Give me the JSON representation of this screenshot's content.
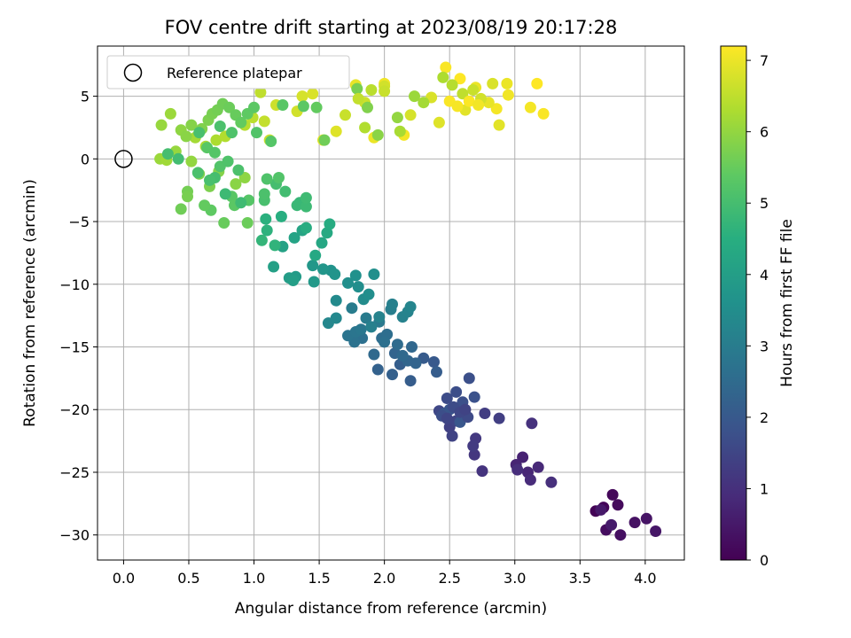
{
  "chart_data": {
    "type": "scatter",
    "title": "FOV centre drift starting at 2023/08/19 20:17:28",
    "xlabel": "Angular distance from reference (arcmin)",
    "ylabel": "Rotation from reference (arcmin)",
    "xlim": [
      -0.2,
      4.3
    ],
    "ylim": [
      -32,
      9
    ],
    "xticks": [
      "0.0",
      "0.5",
      "1.0",
      "1.5",
      "2.0",
      "2.5",
      "3.0",
      "3.5",
      "4.0"
    ],
    "xtick_values": [
      0,
      0.5,
      1,
      1.5,
      2,
      2.5,
      3,
      3.5,
      4
    ],
    "yticks": [
      "5",
      "0",
      "−5",
      "−10",
      "−15",
      "−20",
      "−25",
      "−30"
    ],
    "ytick_values": [
      5,
      0,
      -5,
      -10,
      -15,
      -20,
      -25,
      -30
    ],
    "grid": true,
    "colormap": "viridis",
    "colorbar": {
      "label": "Hours from first FF file",
      "range": [
        0,
        7.2
      ],
      "ticks": [
        "0",
        "1",
        "2",
        "3",
        "4",
        "5",
        "6",
        "7"
      ],
      "tick_values": [
        0,
        1,
        2,
        3,
        4,
        5,
        6,
        7
      ]
    },
    "legend": {
      "placement": "top-left",
      "entries": [
        "Reference platepar"
      ]
    },
    "reference_point": {
      "x": 0,
      "y": 0
    },
    "points": [
      [
        3.62,
        -28.1,
        0.05
      ],
      [
        3.68,
        -27.8,
        0.1
      ],
      [
        3.75,
        -26.8,
        0.15
      ],
      [
        3.79,
        -27.6,
        0.2
      ],
      [
        3.7,
        -29.6,
        0.25
      ],
      [
        3.81,
        -30.0,
        0.3
      ],
      [
        3.92,
        -29.0,
        0.35
      ],
      [
        4.01,
        -28.7,
        0.4
      ],
      [
        4.08,
        -29.7,
        0.45
      ],
      [
        3.66,
        -28.0,
        0.5
      ],
      [
        3.74,
        -29.2,
        0.55
      ],
      [
        3.06,
        -23.8,
        0.7
      ],
      [
        3.01,
        -24.4,
        0.75
      ],
      [
        3.1,
        -25.0,
        0.8
      ],
      [
        3.18,
        -24.6,
        0.85
      ],
      [
        3.12,
        -25.6,
        0.9
      ],
      [
        3.02,
        -24.8,
        0.95
      ],
      [
        3.28,
        -25.8,
        1.0
      ],
      [
        3.13,
        -21.1,
        1.05
      ],
      [
        2.75,
        -24.9,
        1.1
      ],
      [
        2.69,
        -23.6,
        1.15
      ],
      [
        2.7,
        -22.3,
        1.2
      ],
      [
        2.68,
        -22.9,
        1.25
      ],
      [
        2.77,
        -20.3,
        1.3
      ],
      [
        2.88,
        -20.7,
        1.35
      ],
      [
        2.5,
        -21.4,
        1.4
      ],
      [
        2.52,
        -22.1,
        1.45
      ],
      [
        2.55,
        -20.9,
        1.5
      ],
      [
        2.42,
        -20.1,
        1.55
      ],
      [
        2.59,
        -20.4,
        1.6
      ],
      [
        2.48,
        -19.1,
        1.65
      ],
      [
        2.55,
        -18.6,
        1.7
      ],
      [
        2.65,
        -17.5,
        1.75
      ],
      [
        2.69,
        -19.0,
        1.8
      ],
      [
        2.5,
        -20.0,
        1.85
      ],
      [
        2.46,
        -20.3,
        1.9
      ],
      [
        2.58,
        -21.0,
        1.95
      ],
      [
        2.38,
        -16.2,
        2.0
      ],
      [
        2.3,
        -15.9,
        2.05
      ],
      [
        2.2,
        -17.7,
        2.1
      ],
      [
        2.12,
        -16.4,
        2.15
      ],
      [
        2.06,
        -17.2,
        2.2
      ],
      [
        1.95,
        -16.8,
        2.25
      ],
      [
        2.08,
        -15.5,
        2.3
      ],
      [
        2.18,
        -16.1,
        2.35
      ],
      [
        2.21,
        -15.0,
        2.4
      ],
      [
        1.92,
        -15.6,
        2.45
      ],
      [
        2.1,
        -14.8,
        2.5
      ],
      [
        1.98,
        -14.3,
        2.55
      ],
      [
        2.02,
        -14.0,
        2.6
      ],
      [
        1.83,
        -14.3,
        2.65
      ],
      [
        1.77,
        -14.6,
        2.7
      ],
      [
        1.72,
        -14.1,
        2.75
      ],
      [
        1.78,
        -13.8,
        2.8
      ],
      [
        1.82,
        -13.6,
        2.85
      ],
      [
        1.96,
        -13.0,
        2.9
      ],
      [
        1.86,
        -12.7,
        2.95
      ],
      [
        1.75,
        -11.9,
        3.0
      ],
      [
        2.05,
        -12.0,
        3.05
      ],
      [
        2.06,
        -11.6,
        3.1
      ],
      [
        2.14,
        -12.6,
        3.15
      ],
      [
        2.18,
        -12.2,
        3.2
      ],
      [
        2.2,
        -11.8,
        3.25
      ],
      [
        1.57,
        -13.1,
        3.3
      ],
      [
        1.63,
        -12.7,
        3.35
      ],
      [
        1.63,
        -11.3,
        3.4
      ],
      [
        1.84,
        -11.2,
        3.45
      ],
      [
        1.8,
        -10.2,
        3.5
      ],
      [
        1.92,
        -9.2,
        3.55
      ],
      [
        1.78,
        -9.3,
        3.6
      ],
      [
        1.59,
        -8.9,
        3.65
      ],
      [
        1.62,
        -9.2,
        3.7
      ],
      [
        1.53,
        -8.8,
        3.75
      ],
      [
        1.45,
        -8.5,
        3.8
      ],
      [
        1.46,
        -9.8,
        3.85
      ],
      [
        1.32,
        -9.4,
        3.9
      ],
      [
        1.27,
        -9.5,
        3.95
      ],
      [
        1.3,
        -9.7,
        4.0
      ],
      [
        1.15,
        -8.6,
        4.05
      ],
      [
        1.22,
        -7.0,
        4.1
      ],
      [
        1.31,
        -6.3,
        4.15
      ],
      [
        1.37,
        -5.7,
        4.2
      ],
      [
        1.52,
        -6.7,
        4.25
      ],
      [
        1.47,
        -7.7,
        4.3
      ],
      [
        1.56,
        -5.9,
        4.35
      ],
      [
        1.58,
        -5.2,
        4.4
      ],
      [
        1.4,
        -5.5,
        4.45
      ],
      [
        1.21,
        -4.6,
        4.5
      ],
      [
        1.09,
        -4.8,
        4.55
      ],
      [
        1.1,
        -5.7,
        4.6
      ],
      [
        1.16,
        -6.9,
        4.65
      ],
      [
        1.06,
        -6.5,
        4.7
      ],
      [
        1.35,
        -3.5,
        4.75
      ],
      [
        1.33,
        -3.7,
        4.8
      ],
      [
        1.4,
        -3.8,
        4.85
      ],
      [
        1.4,
        -3.1,
        4.9
      ],
      [
        1.24,
        -2.6,
        4.95
      ],
      [
        1.17,
        -2.0,
        5.0
      ],
      [
        1.08,
        -3.3,
        5.05
      ],
      [
        1.08,
        -2.8,
        5.1
      ],
      [
        1.1,
        -1.6,
        5.15
      ],
      [
        1.19,
        -1.5,
        5.2
      ],
      [
        0.96,
        -3.3,
        5.25
      ],
      [
        0.83,
        -3.0,
        5.3
      ],
      [
        0.85,
        -3.7,
        5.35
      ],
      [
        0.67,
        -4.1,
        5.4
      ],
      [
        0.62,
        -3.7,
        5.45
      ],
      [
        0.77,
        -5.1,
        5.5
      ],
      [
        0.95,
        -5.1,
        5.55
      ],
      [
        0.44,
        -4.0,
        5.6
      ],
      [
        0.49,
        -2.6,
        5.65
      ],
      [
        0.49,
        -3.0,
        5.7
      ],
      [
        0.66,
        -2.2,
        5.75
      ],
      [
        0.58,
        -1.2,
        5.8
      ],
      [
        0.73,
        -1.0,
        5.85
      ],
      [
        0.86,
        -2.0,
        5.9
      ],
      [
        0.93,
        -1.5,
        5.95
      ],
      [
        0.52,
        -0.2,
        6.0
      ],
      [
        0.4,
        0.6,
        6.05
      ],
      [
        0.28,
        0.0,
        6.1
      ],
      [
        0.33,
        -0.1,
        6.15
      ],
      [
        0.55,
        1.7,
        6.2
      ],
      [
        0.63,
        1.0,
        6.25
      ],
      [
        0.71,
        1.5,
        6.3
      ],
      [
        0.78,
        1.8,
        6.35
      ],
      [
        0.93,
        2.7,
        6.4
      ],
      [
        0.99,
        3.3,
        6.45
      ],
      [
        1.05,
        5.3,
        6.5
      ],
      [
        1.08,
        3.0,
        6.55
      ],
      [
        1.12,
        1.5,
        6.6
      ],
      [
        1.17,
        4.3,
        6.65
      ],
      [
        1.33,
        3.8,
        6.7
      ],
      [
        1.37,
        5.0,
        6.75
      ],
      [
        1.45,
        5.2,
        6.8
      ],
      [
        1.63,
        2.2,
        6.85
      ],
      [
        1.53,
        1.5,
        6.9
      ],
      [
        1.78,
        5.9,
        6.95
      ],
      [
        1.92,
        1.7,
        7.0
      ],
      [
        2.0,
        6.0,
        7.05
      ],
      [
        2.15,
        1.9,
        7.1
      ],
      [
        2.47,
        7.3,
        7.15
      ],
      [
        2.58,
        6.4,
        7.2
      ],
      [
        2.7,
        5.7,
        7.0
      ],
      [
        2.86,
        4.0,
        7.1
      ],
      [
        3.17,
        6.0,
        7.2
      ],
      [
        3.22,
        3.6,
        7.15
      ],
      [
        2.95,
        5.1,
        7.05
      ],
      [
        2.8,
        4.5,
        6.95
      ],
      [
        2.62,
        3.9,
        6.9
      ],
      [
        2.42,
        2.9,
        6.85
      ],
      [
        2.36,
        4.9,
        6.8
      ],
      [
        2.2,
        3.5,
        6.75
      ],
      [
        2.0,
        5.8,
        6.7
      ],
      [
        1.85,
        4.5,
        6.65
      ],
      [
        1.7,
        3.5,
        6.6
      ],
      [
        0.29,
        2.7,
        6.05
      ],
      [
        0.36,
        3.6,
        6.1
      ],
      [
        0.44,
        2.3,
        5.95
      ],
      [
        0.48,
        1.8,
        5.9
      ],
      [
        0.52,
        2.7,
        5.85
      ],
      [
        0.6,
        2.4,
        5.8
      ],
      [
        0.65,
        3.1,
        5.75
      ],
      [
        0.68,
        3.6,
        5.7
      ],
      [
        0.72,
        3.9,
        5.65
      ],
      [
        0.76,
        4.4,
        5.6
      ],
      [
        0.81,
        4.1,
        5.55
      ],
      [
        0.86,
        3.5,
        5.5
      ],
      [
        0.9,
        2.9,
        5.45
      ],
      [
        0.95,
        3.6,
        5.4
      ],
      [
        1.0,
        4.1,
        5.35
      ],
      [
        0.64,
        0.9,
        5.3
      ],
      [
        0.7,
        0.5,
        5.25
      ],
      [
        0.74,
        -0.6,
        5.2
      ],
      [
        0.8,
        -0.2,
        5.15
      ],
      [
        0.88,
        -0.9,
        5.1
      ],
      [
        0.34,
        0.4,
        5.0
      ],
      [
        0.42,
        0.0,
        4.95
      ],
      [
        0.58,
        2.1,
        5.05
      ],
      [
        0.74,
        2.6,
        5.1
      ],
      [
        0.83,
        2.1,
        5.15
      ],
      [
        1.02,
        2.1,
        5.2
      ],
      [
        1.13,
        1.4,
        5.25
      ],
      [
        1.22,
        4.3,
        5.3
      ],
      [
        1.38,
        4.2,
        5.35
      ],
      [
        1.48,
        4.1,
        5.45
      ],
      [
        1.54,
        1.5,
        5.6
      ],
      [
        1.79,
        5.6,
        5.7
      ],
      [
        1.87,
        4.1,
        5.8
      ],
      [
        1.95,
        1.9,
        5.9
      ],
      [
        2.1,
        3.3,
        6.0
      ],
      [
        2.23,
        5.0,
        6.1
      ],
      [
        2.3,
        4.5,
        6.2
      ],
      [
        2.45,
        6.5,
        6.3
      ],
      [
        2.52,
        5.9,
        6.4
      ],
      [
        2.6,
        5.2,
        6.5
      ],
      [
        2.68,
        5.5,
        6.6
      ],
      [
        2.74,
        4.8,
        6.7
      ],
      [
        2.83,
        6.0,
        6.8
      ],
      [
        2.88,
        2.7,
        6.9
      ],
      [
        2.94,
        6.0,
        7.0
      ],
      [
        3.12,
        4.1,
        7.1
      ],
      [
        2.5,
        4.6,
        7.15
      ],
      [
        2.56,
        4.2,
        7.12
      ],
      [
        2.65,
        4.6,
        7.18
      ],
      [
        2.72,
        4.3,
        7.08
      ],
      [
        1.8,
        4.8,
        6.55
      ],
      [
        1.9,
        5.5,
        6.45
      ],
      [
        2.0,
        5.4,
        6.6
      ],
      [
        1.85,
        2.5,
        6.35
      ],
      [
        2.12,
        2.2,
        6.25
      ],
      [
        0.9,
        -3.5,
        4.9
      ],
      [
        0.78,
        -2.8,
        4.85
      ],
      [
        0.7,
        -1.5,
        5.0
      ],
      [
        0.66,
        -1.7,
        5.05
      ],
      [
        0.57,
        -1.1,
        5.1
      ],
      [
        1.72,
        -9.9,
        3.55
      ],
      [
        1.88,
        -10.8,
        3.5
      ],
      [
        1.96,
        -12.6,
        3.2
      ],
      [
        1.9,
        -13.4,
        3.1
      ],
      [
        2.0,
        -14.6,
        2.65
      ],
      [
        2.14,
        -15.7,
        2.45
      ],
      [
        2.24,
        -16.3,
        2.3
      ],
      [
        2.4,
        -17.0,
        2.1
      ],
      [
        2.6,
        -19.4,
        1.75
      ],
      [
        2.64,
        -20.6,
        1.6
      ],
      [
        2.53,
        -19.8,
        1.65
      ],
      [
        2.44,
        -20.5,
        1.7
      ],
      [
        2.58,
        -20.2,
        1.55
      ],
      [
        2.48,
        -20.7,
        1.5
      ],
      [
        2.62,
        -20.0,
        1.45
      ]
    ]
  }
}
